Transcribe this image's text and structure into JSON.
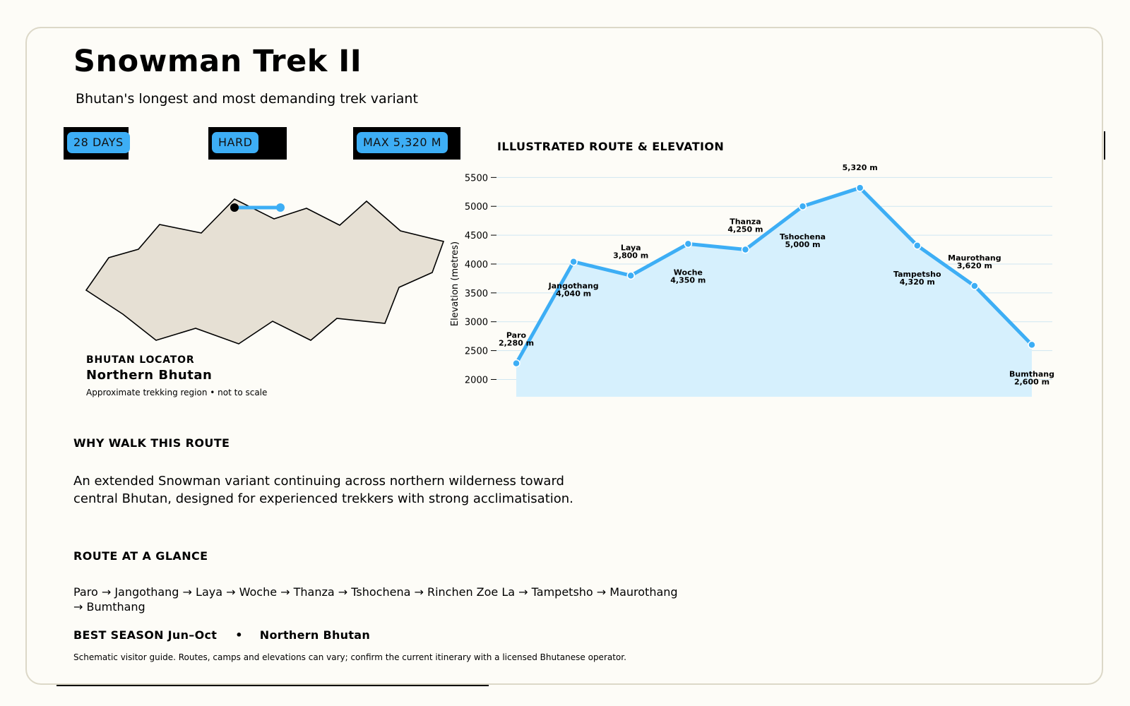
{
  "header": {
    "title": "Snowman Trek II",
    "subtitle": "Bhutan's longest and most demanding trek variant"
  },
  "badges": [
    "28 DAYS",
    "HARD",
    "MAX 5,320 M"
  ],
  "locator": {
    "label": "BHUTAN LOCATOR",
    "title": "Northern Bhutan",
    "note": "Approximate trekking region • not to scale",
    "colors": {
      "land": "#e6e0d4",
      "route": "#3daef5"
    }
  },
  "chart_heading": "ILLUSTRATED ROUTE & ELEVATION",
  "chart_data": {
    "type": "area",
    "title": "ILLUSTRATED ROUTE & ELEVATION",
    "xlabel": "",
    "ylabel": "Elevation (metres)",
    "ylim": [
      1700,
      5700
    ],
    "yticks": [
      2000,
      2500,
      3000,
      3500,
      4000,
      4500,
      5000,
      5500
    ],
    "grid": true,
    "colors": {
      "line": "#3daef5",
      "fill": "#d6f0fd",
      "grid": "#cfe6f2"
    },
    "points": [
      {
        "name": "Paro",
        "value": 2280,
        "label": "2,280 m"
      },
      {
        "name": "Jangothang",
        "value": 4040,
        "label": "4,040 m"
      },
      {
        "name": "Laya",
        "value": 3800,
        "label": "3,800 m"
      },
      {
        "name": "Woche",
        "value": 4350,
        "label": "4,350 m"
      },
      {
        "name": "Thanza",
        "value": 4250,
        "label": "4,250 m"
      },
      {
        "name": "Tshochena",
        "value": 5000,
        "label": "5,000 m"
      },
      {
        "name": "Rinchen Zoe La",
        "value": 5320,
        "label": "5,320 m"
      },
      {
        "name": "Tampetsho",
        "value": 4320,
        "label": "4,320 m"
      },
      {
        "name": "Maurothang",
        "value": 3620,
        "label": "3,620 m"
      },
      {
        "name": "Bumthang",
        "value": 2600,
        "label": "2,600 m"
      }
    ]
  },
  "why": {
    "heading": "WHY WALK THIS ROUTE",
    "text": "An extended Snowman variant continuing across northern wilderness toward central Bhutan, designed for experienced trekkers with strong acclimatisation."
  },
  "route": {
    "heading": "ROUTE AT A GLANCE",
    "text": "Paro  →  Jangothang  →  Laya  →  Woche  →  Thanza  →  Tshochena  →  Rinchen Zoe La  →  Tampetsho  →  Maurothang  →  Bumthang"
  },
  "season": {
    "label": "BEST SEASON  Jun–Oct",
    "separator": "•",
    "region": "Northern Bhutan"
  },
  "disclaimer": "Schematic visitor guide. Routes, camps and elevations can vary; confirm the current itinerary with a licensed Bhutanese operator."
}
